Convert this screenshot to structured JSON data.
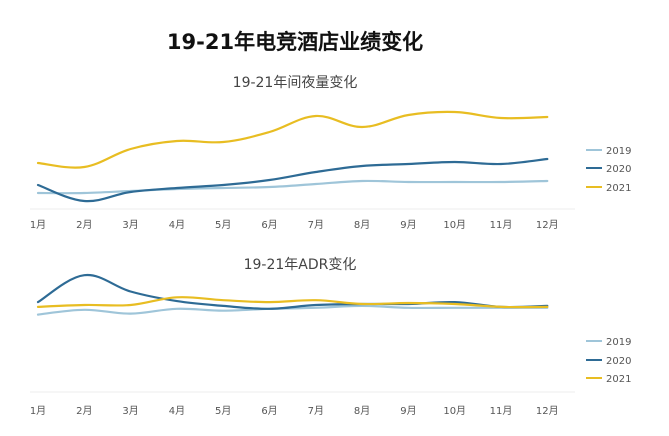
{
  "title": "19-21年电竞酒店业绩变化",
  "chart_data": [
    {
      "type": "line",
      "title": "19-21年间夜量变化",
      "categories": [
        "1月",
        "2月",
        "3月",
        "4月",
        "5月",
        "6月",
        "7月",
        "8月",
        "9月",
        "10月",
        "11月",
        "12月"
      ],
      "ylim": [
        0,
        100
      ],
      "grid": false,
      "legend": "right",
      "series": [
        {
          "name": "2019",
          "color": "#9fc5d9",
          "values": [
            12,
            12,
            14,
            16,
            17,
            18,
            21,
            24,
            23,
            23,
            23,
            24
          ]
        },
        {
          "name": "2020",
          "color": "#2e6b95",
          "values": [
            20,
            4,
            13,
            17,
            20,
            25,
            33,
            39,
            41,
            43,
            41,
            46
          ]
        },
        {
          "name": "2021",
          "color": "#e8bd22",
          "values": [
            42,
            38,
            56,
            64,
            63,
            73,
            89,
            78,
            90,
            93,
            87,
            88
          ]
        }
      ]
    },
    {
      "type": "line",
      "title": "19-21年ADR变化",
      "categories": [
        "1月",
        "2月",
        "3月",
        "4月",
        "5月",
        "6月",
        "7月",
        "8月",
        "9月",
        "10月",
        "11月",
        "12月"
      ],
      "ylim": [
        0,
        100
      ],
      "grid": false,
      "legend": "right",
      "series": [
        {
          "name": "2019",
          "color": "#9fc5d9",
          "values": [
            64,
            69,
            65,
            70,
            68,
            70,
            71,
            73,
            71,
            71,
            71,
            71
          ]
        },
        {
          "name": "2020",
          "color": "#2e6b95",
          "values": [
            77,
            105,
            88,
            78,
            73,
            70,
            74,
            75,
            75,
            77,
            72,
            73
          ]
        },
        {
          "name": "2021",
          "color": "#e8bd22",
          "values": [
            72,
            74,
            74,
            82,
            79,
            77,
            79,
            75,
            76,
            75,
            72,
            72
          ]
        }
      ]
    }
  ]
}
